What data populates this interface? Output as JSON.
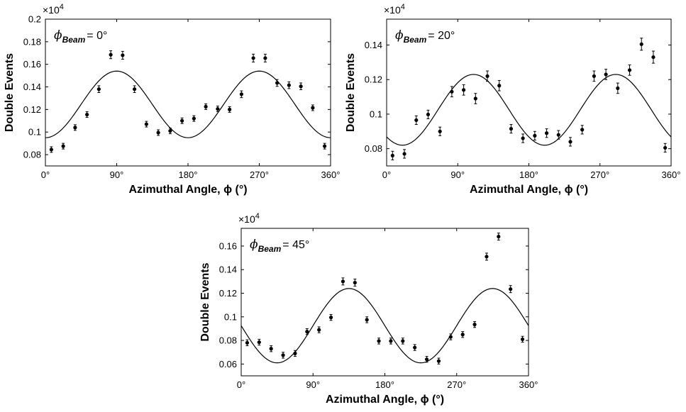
{
  "chart_data": [
    {
      "type": "scatter",
      "annotation": {
        "symbol": "ϕ",
        "subscript": "Beam",
        "text": "= 0°"
      },
      "multiplier": "×10",
      "multiplier_exp": "4",
      "xlabel": "Azimuthal Angle, ϕ (°)",
      "ylabel": "Double Events",
      "xlim": [
        0,
        360
      ],
      "ylim": [
        0.07,
        0.2
      ],
      "xticks": [
        0,
        90,
        180,
        270,
        360
      ],
      "xtick_labels": [
        "0°",
        "90°",
        "180°",
        "270°",
        "360°"
      ],
      "yticks": [
        0.08,
        0.1,
        0.12,
        0.14,
        0.16,
        0.18,
        0.2
      ],
      "ytick_labels": [
        "0.08",
        "0.1",
        "0.12",
        "0.14",
        "0.16",
        "0.18",
        "0.2"
      ],
      "fit": {
        "amplitude": 0.0295,
        "offset": 0.1245,
        "phase_deg": 0
      },
      "points": [
        {
          "x": 7.5,
          "y": 0.0845,
          "err": 0.0025
        },
        {
          "x": 22.5,
          "y": 0.0875,
          "err": 0.0025
        },
        {
          "x": 37.5,
          "y": 0.104,
          "err": 0.0025
        },
        {
          "x": 52.5,
          "y": 0.1155,
          "err": 0.0025
        },
        {
          "x": 67.5,
          "y": 0.138,
          "err": 0.003
        },
        {
          "x": 82.5,
          "y": 0.1685,
          "err": 0.0035
        },
        {
          "x": 97.5,
          "y": 0.168,
          "err": 0.0035
        },
        {
          "x": 112.5,
          "y": 0.138,
          "err": 0.003
        },
        {
          "x": 127.5,
          "y": 0.107,
          "err": 0.0025
        },
        {
          "x": 142.5,
          "y": 0.0995,
          "err": 0.0025
        },
        {
          "x": 157.5,
          "y": 0.101,
          "err": 0.0025
        },
        {
          "x": 172.5,
          "y": 0.11,
          "err": 0.0025
        },
        {
          "x": 187.5,
          "y": 0.112,
          "err": 0.0025
        },
        {
          "x": 202.5,
          "y": 0.1225,
          "err": 0.0025
        },
        {
          "x": 217.5,
          "y": 0.1205,
          "err": 0.0025
        },
        {
          "x": 232.5,
          "y": 0.12,
          "err": 0.0025
        },
        {
          "x": 247.5,
          "y": 0.1335,
          "err": 0.003
        },
        {
          "x": 262.5,
          "y": 0.1655,
          "err": 0.0035
        },
        {
          "x": 277.5,
          "y": 0.1655,
          "err": 0.0035
        },
        {
          "x": 292.5,
          "y": 0.1435,
          "err": 0.003
        },
        {
          "x": 307.5,
          "y": 0.1415,
          "err": 0.003
        },
        {
          "x": 322.5,
          "y": 0.1405,
          "err": 0.003
        },
        {
          "x": 337.5,
          "y": 0.1215,
          "err": 0.0025
        },
        {
          "x": 352.5,
          "y": 0.0875,
          "err": 0.0025
        }
      ]
    },
    {
      "type": "scatter",
      "annotation": {
        "symbol": "ϕ",
        "subscript": "Beam",
        "text": "= 20°"
      },
      "multiplier": "×10",
      "multiplier_exp": "4",
      "xlabel": "Azimuthal Angle, ϕ (°)",
      "ylabel": "Double Events",
      "xlim": [
        0,
        360
      ],
      "ylim": [
        0.07,
        0.155
      ],
      "xticks": [
        0,
        90,
        180,
        270,
        360
      ],
      "xtick_labels": [
        "0°",
        "90°",
        "180°",
        "270°",
        "360°"
      ],
      "yticks": [
        0.08,
        0.1,
        0.12,
        0.14
      ],
      "ytick_labels": [
        "0.08",
        "0.1",
        "0.12",
        "0.14"
      ],
      "fit": {
        "amplitude": 0.0205,
        "offset": 0.1025,
        "phase_deg": 20
      },
      "points": [
        {
          "x": 7.5,
          "y": 0.076,
          "err": 0.0025
        },
        {
          "x": 22.5,
          "y": 0.077,
          "err": 0.0025
        },
        {
          "x": 37.5,
          "y": 0.0965,
          "err": 0.0025
        },
        {
          "x": 52.5,
          "y": 0.0998,
          "err": 0.0025
        },
        {
          "x": 67.5,
          "y": 0.09,
          "err": 0.0025
        },
        {
          "x": 82.5,
          "y": 0.113,
          "err": 0.003
        },
        {
          "x": 97.5,
          "y": 0.114,
          "err": 0.003
        },
        {
          "x": 112.5,
          "y": 0.109,
          "err": 0.003
        },
        {
          "x": 127.5,
          "y": 0.122,
          "err": 0.003
        },
        {
          "x": 142.5,
          "y": 0.1165,
          "err": 0.003
        },
        {
          "x": 157.5,
          "y": 0.0915,
          "err": 0.0025
        },
        {
          "x": 172.5,
          "y": 0.086,
          "err": 0.0025
        },
        {
          "x": 187.5,
          "y": 0.0875,
          "err": 0.0025
        },
        {
          "x": 202.5,
          "y": 0.089,
          "err": 0.0025
        },
        {
          "x": 217.5,
          "y": 0.088,
          "err": 0.0025
        },
        {
          "x": 232.5,
          "y": 0.084,
          "err": 0.0025
        },
        {
          "x": 247.5,
          "y": 0.091,
          "err": 0.0025
        },
        {
          "x": 262.5,
          "y": 0.122,
          "err": 0.003
        },
        {
          "x": 277.5,
          "y": 0.123,
          "err": 0.003
        },
        {
          "x": 292.5,
          "y": 0.115,
          "err": 0.003
        },
        {
          "x": 307.5,
          "y": 0.1255,
          "err": 0.003
        },
        {
          "x": 322.5,
          "y": 0.1405,
          "err": 0.0035
        },
        {
          "x": 337.5,
          "y": 0.133,
          "err": 0.0035
        },
        {
          "x": 352.5,
          "y": 0.0805,
          "err": 0.0025
        }
      ]
    },
    {
      "type": "scatter",
      "annotation": {
        "symbol": "ϕ",
        "subscript": "Beam",
        "text": "= 45°"
      },
      "multiplier": "×10",
      "multiplier_exp": "4",
      "xlabel": "Azimuthal Angle, ϕ (°)",
      "ylabel": "Double Events",
      "xlim": [
        0,
        360
      ],
      "ylim": [
        0.05,
        0.175
      ],
      "xticks": [
        0,
        90,
        180,
        270,
        360
      ],
      "xtick_labels": [
        "0°",
        "90°",
        "180°",
        "270°",
        "360°"
      ],
      "yticks": [
        0.06,
        0.08,
        0.1,
        0.12,
        0.14,
        0.16
      ],
      "ytick_labels": [
        "0.06",
        "0.08",
        "0.1",
        "0.12",
        "0.14",
        "0.16"
      ],
      "fit": {
        "amplitude": 0.0315,
        "offset": 0.0925,
        "phase_deg": 45
      },
      "points": [
        {
          "x": 7.5,
          "y": 0.078,
          "err": 0.0025
        },
        {
          "x": 22.5,
          "y": 0.0785,
          "err": 0.0025
        },
        {
          "x": 37.5,
          "y": 0.073,
          "err": 0.0025
        },
        {
          "x": 52.5,
          "y": 0.0675,
          "err": 0.0025
        },
        {
          "x": 67.5,
          "y": 0.069,
          "err": 0.0025
        },
        {
          "x": 82.5,
          "y": 0.0875,
          "err": 0.0025
        },
        {
          "x": 97.5,
          "y": 0.089,
          "err": 0.0025
        },
        {
          "x": 112.5,
          "y": 0.0995,
          "err": 0.0025
        },
        {
          "x": 127.5,
          "y": 0.13,
          "err": 0.003
        },
        {
          "x": 142.5,
          "y": 0.129,
          "err": 0.003
        },
        {
          "x": 157.5,
          "y": 0.0975,
          "err": 0.0025
        },
        {
          "x": 172.5,
          "y": 0.0795,
          "err": 0.0025
        },
        {
          "x": 187.5,
          "y": 0.0795,
          "err": 0.0025
        },
        {
          "x": 202.5,
          "y": 0.0795,
          "err": 0.0025
        },
        {
          "x": 217.5,
          "y": 0.074,
          "err": 0.0025
        },
        {
          "x": 232.5,
          "y": 0.064,
          "err": 0.0025
        },
        {
          "x": 247.5,
          "y": 0.0625,
          "err": 0.0025
        },
        {
          "x": 262.5,
          "y": 0.083,
          "err": 0.0025
        },
        {
          "x": 277.5,
          "y": 0.085,
          "err": 0.0025
        },
        {
          "x": 292.5,
          "y": 0.0935,
          "err": 0.0025
        },
        {
          "x": 307.5,
          "y": 0.151,
          "err": 0.003
        },
        {
          "x": 322.5,
          "y": 0.168,
          "err": 0.003
        },
        {
          "x": 337.5,
          "y": 0.1235,
          "err": 0.003
        },
        {
          "x": 352.5,
          "y": 0.081,
          "err": 0.0025
        }
      ]
    }
  ]
}
